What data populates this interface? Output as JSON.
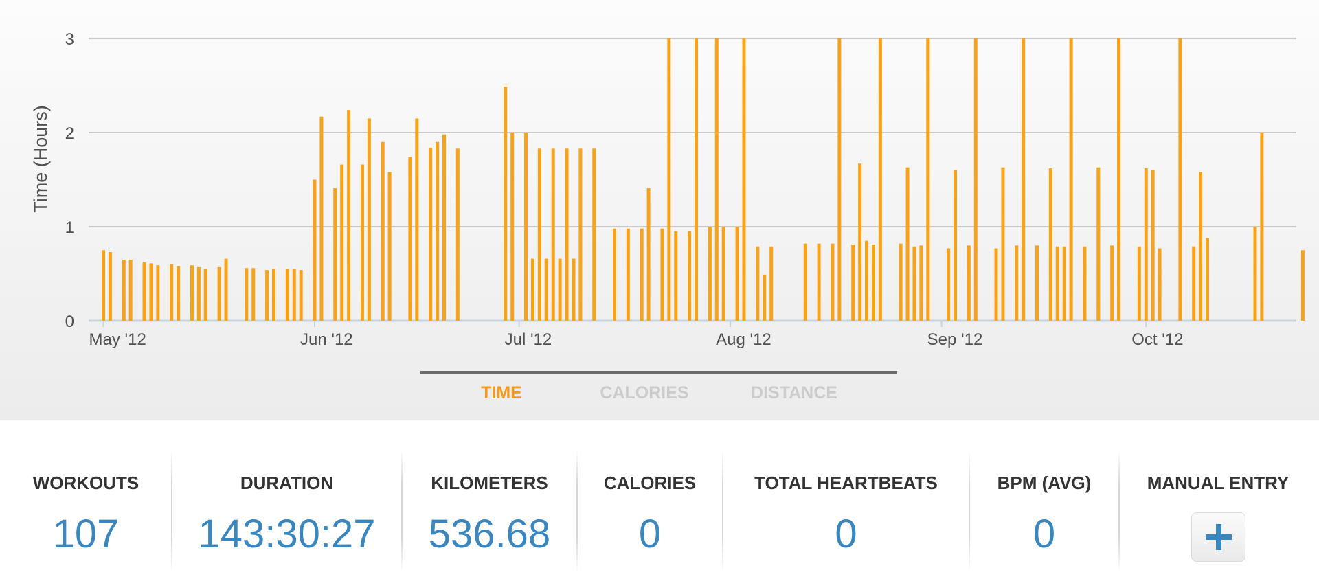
{
  "chart_data": {
    "type": "bar",
    "title": "",
    "xlabel": "",
    "ylabel": "Time (Hours)",
    "ylim": [
      0,
      3
    ],
    "y_ticks": [
      "0",
      "1",
      "2",
      "3"
    ],
    "x_range": [
      "2012-04-30",
      "2012-10-27"
    ],
    "x_tick_labels": [
      {
        "date": "2012-05-01",
        "label": "May '12"
      },
      {
        "date": "2012-06-01",
        "label": "Jun '12"
      },
      {
        "date": "2012-07-01",
        "label": "Jul '12"
      },
      {
        "date": "2012-08-01",
        "label": "Aug '12"
      },
      {
        "date": "2012-09-01",
        "label": "Sep '12"
      },
      {
        "date": "2012-10-01",
        "label": "Oct '12"
      }
    ],
    "grid": true,
    "bar_color": "#f7a21b",
    "points": [
      [
        "2012-05-01",
        0.75
      ],
      [
        "2012-05-02",
        0.73
      ],
      [
        "2012-05-04",
        0.65
      ],
      [
        "2012-05-05",
        0.65
      ],
      [
        "2012-05-07",
        0.62
      ],
      [
        "2012-05-08",
        0.61
      ],
      [
        "2012-05-09",
        0.59
      ],
      [
        "2012-05-11",
        0.6
      ],
      [
        "2012-05-12",
        0.58
      ],
      [
        "2012-05-14",
        0.59
      ],
      [
        "2012-05-15",
        0.57
      ],
      [
        "2012-05-16",
        0.55
      ],
      [
        "2012-05-18",
        0.57
      ],
      [
        "2012-05-19",
        0.66
      ],
      [
        "2012-05-22",
        0.56
      ],
      [
        "2012-05-23",
        0.56
      ],
      [
        "2012-05-25",
        0.54
      ],
      [
        "2012-05-26",
        0.55
      ],
      [
        "2012-05-28",
        0.55
      ],
      [
        "2012-05-29",
        0.55
      ],
      [
        "2012-05-30",
        0.54
      ],
      [
        "2012-06-01",
        1.5
      ],
      [
        "2012-06-02",
        2.17
      ],
      [
        "2012-06-04",
        1.41
      ],
      [
        "2012-06-05",
        1.66
      ],
      [
        "2012-06-06",
        2.24
      ],
      [
        "2012-06-08",
        1.66
      ],
      [
        "2012-06-09",
        2.15
      ],
      [
        "2012-06-11",
        1.9
      ],
      [
        "2012-06-12",
        1.58
      ],
      [
        "2012-06-15",
        1.74
      ],
      [
        "2012-06-16",
        2.15
      ],
      [
        "2012-06-18",
        1.84
      ],
      [
        "2012-06-19",
        1.9
      ],
      [
        "2012-06-20",
        1.98
      ],
      [
        "2012-06-22",
        1.83
      ],
      [
        "2012-06-29",
        2.49
      ],
      [
        "2012-06-30",
        2.0
      ],
      [
        "2012-07-02",
        2.0
      ],
      [
        "2012-07-03",
        0.66
      ],
      [
        "2012-07-04",
        1.83
      ],
      [
        "2012-07-05",
        0.66
      ],
      [
        "2012-07-06",
        1.83
      ],
      [
        "2012-07-07",
        0.66
      ],
      [
        "2012-07-08",
        1.83
      ],
      [
        "2012-07-09",
        0.66
      ],
      [
        "2012-07-10",
        1.83
      ],
      [
        "2012-07-12",
        1.83
      ],
      [
        "2012-07-15",
        0.98
      ],
      [
        "2012-07-17",
        0.98
      ],
      [
        "2012-07-19",
        0.98
      ],
      [
        "2012-07-20",
        1.41
      ],
      [
        "2012-07-22",
        0.98
      ],
      [
        "2012-07-23",
        3.0
      ],
      [
        "2012-07-24",
        0.95
      ],
      [
        "2012-07-26",
        0.95
      ],
      [
        "2012-07-27",
        3.0
      ],
      [
        "2012-07-29",
        1.0
      ],
      [
        "2012-07-30",
        3.0
      ],
      [
        "2012-07-31",
        1.0
      ],
      [
        "2012-08-02",
        1.0
      ],
      [
        "2012-08-03",
        3.0
      ],
      [
        "2012-08-05",
        0.79
      ],
      [
        "2012-08-06",
        0.49
      ],
      [
        "2012-08-07",
        0.79
      ],
      [
        "2012-08-12",
        0.82
      ],
      [
        "2012-08-14",
        0.82
      ],
      [
        "2012-08-16",
        0.82
      ],
      [
        "2012-08-17",
        3.0
      ],
      [
        "2012-08-19",
        0.81
      ],
      [
        "2012-08-20",
        1.67
      ],
      [
        "2012-08-21",
        0.85
      ],
      [
        "2012-08-22",
        0.81
      ],
      [
        "2012-08-23",
        3.0
      ],
      [
        "2012-08-26",
        0.82
      ],
      [
        "2012-08-27",
        1.63
      ],
      [
        "2012-08-28",
        0.79
      ],
      [
        "2012-08-29",
        0.8
      ],
      [
        "2012-08-30",
        3.0
      ],
      [
        "2012-09-02",
        0.77
      ],
      [
        "2012-09-03",
        1.6
      ],
      [
        "2012-09-05",
        0.8
      ],
      [
        "2012-09-06",
        3.0
      ],
      [
        "2012-09-09",
        0.77
      ],
      [
        "2012-09-10",
        1.63
      ],
      [
        "2012-09-12",
        0.8
      ],
      [
        "2012-09-13",
        3.0
      ],
      [
        "2012-09-15",
        0.8
      ],
      [
        "2012-09-17",
        1.62
      ],
      [
        "2012-09-18",
        0.79
      ],
      [
        "2012-09-19",
        0.79
      ],
      [
        "2012-09-20",
        3.0
      ],
      [
        "2012-09-22",
        0.79
      ],
      [
        "2012-09-24",
        1.63
      ],
      [
        "2012-09-26",
        0.8
      ],
      [
        "2012-09-27",
        3.0
      ],
      [
        "2012-09-30",
        0.79
      ],
      [
        "2012-10-01",
        1.62
      ],
      [
        "2012-10-02",
        1.6
      ],
      [
        "2012-10-03",
        0.77
      ],
      [
        "2012-10-06",
        3.0
      ],
      [
        "2012-10-08",
        0.79
      ],
      [
        "2012-10-09",
        1.58
      ],
      [
        "2012-10-10",
        0.88
      ],
      [
        "2012-10-17",
        1.0
      ],
      [
        "2012-10-18",
        2.0
      ],
      [
        "2012-10-24",
        0.75
      ]
    ]
  },
  "tabs": [
    {
      "label": "TIME",
      "color": "#f39a1e",
      "active": true
    },
    {
      "label": "CALORIES",
      "color": "#cccccc",
      "active": false
    },
    {
      "label": "DISTANCE",
      "color": "#cccccc",
      "active": false
    }
  ],
  "stats": {
    "workouts": {
      "label": "WORKOUTS",
      "value": "107"
    },
    "duration": {
      "label": "DURATION",
      "value": "143:30:27"
    },
    "kilometers": {
      "label": "KILOMETERS",
      "value": "536.68"
    },
    "calories": {
      "label": "CALORIES",
      "value": "0"
    },
    "heartbeats": {
      "label": "TOTAL HEARTBEATS",
      "value": "0"
    },
    "bpm": {
      "label": "BPM (AVG)",
      "value": "0"
    },
    "manual_entry": {
      "label": "MANUAL ENTRY",
      "icon": "plus-icon"
    }
  },
  "colors": {
    "accent": "#3a87c0",
    "bar": "#f7a21b",
    "active_tab": "#f39a1e",
    "inactive_tab": "#cccccc"
  }
}
